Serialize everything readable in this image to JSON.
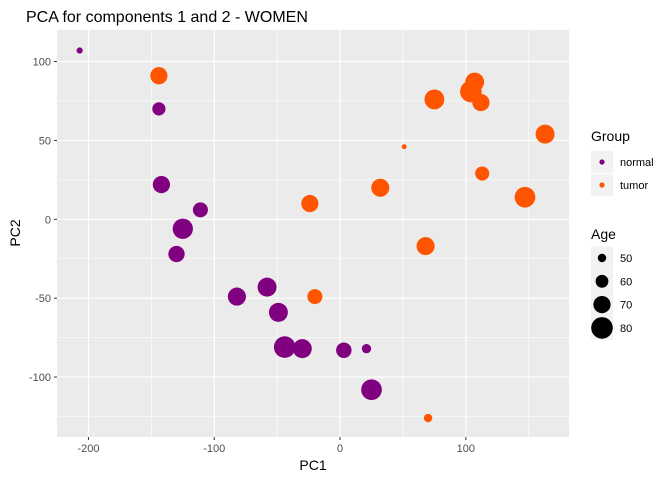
{
  "chart_data": {
    "type": "scatter",
    "title": "PCA for components 1 and 2 - WOMEN",
    "xlabel": "PC1",
    "ylabel": "PC2",
    "xlim": [
      -225,
      182
    ],
    "ylim": [
      -138,
      120
    ],
    "xticks": [
      -200,
      -100,
      0,
      100
    ],
    "yticks": [
      -100,
      -50,
      0,
      50,
      100
    ],
    "grid": true,
    "legend_position": "right",
    "colors": {
      "normal": "#800080",
      "tumor": "#ff5500",
      "panel": "#ebebeb",
      "grid": "#ffffff",
      "legend_key": "#f2f2f2"
    },
    "series": [
      {
        "name": "normal",
        "color": "#800080",
        "points": [
          {
            "x": -207,
            "y": 107,
            "age": 45
          },
          {
            "x": -144,
            "y": 70,
            "age": 61
          },
          {
            "x": -142,
            "y": 22,
            "age": 70
          },
          {
            "x": -111,
            "y": 6,
            "age": 65
          },
          {
            "x": -125,
            "y": -6,
            "age": 77
          },
          {
            "x": -130,
            "y": -22,
            "age": 68
          },
          {
            "x": -82,
            "y": -49,
            "age": 72
          },
          {
            "x": -58,
            "y": -43,
            "age": 74
          },
          {
            "x": -49,
            "y": -59,
            "age": 74
          },
          {
            "x": -44,
            "y": -81,
            "age": 80
          },
          {
            "x": -30,
            "y": -82,
            "age": 74
          },
          {
            "x": 3,
            "y": -83,
            "age": 66
          },
          {
            "x": 21,
            "y": -82,
            "age": 52
          },
          {
            "x": 25,
            "y": -108,
            "age": 78
          }
        ]
      },
      {
        "name": "tumor",
        "color": "#ff5500",
        "points": [
          {
            "x": -144,
            "y": 91,
            "age": 70
          },
          {
            "x": 107,
            "y": 87,
            "age": 74
          },
          {
            "x": 75,
            "y": 76,
            "age": 76
          },
          {
            "x": 104,
            "y": 81,
            "age": 80
          },
          {
            "x": 112,
            "y": 74,
            "age": 70
          },
          {
            "x": 163,
            "y": 54,
            "age": 74
          },
          {
            "x": 51,
            "y": 46,
            "age": 42
          },
          {
            "x": 113,
            "y": 29,
            "age": 63
          },
          {
            "x": 32,
            "y": 20,
            "age": 72
          },
          {
            "x": 147,
            "y": 14,
            "age": 78
          },
          {
            "x": -24,
            "y": 10,
            "age": 70
          },
          {
            "x": 68,
            "y": -17,
            "age": 72
          },
          {
            "x": -20,
            "y": -49,
            "age": 65
          },
          {
            "x": 70,
            "y": -126,
            "age": 50
          }
        ]
      }
    ],
    "legend": {
      "group_title": "Group",
      "group_items": [
        "normal",
        "tumor"
      ],
      "size_title": "Age",
      "size_items": [
        50,
        60,
        70,
        80
      ]
    }
  }
}
